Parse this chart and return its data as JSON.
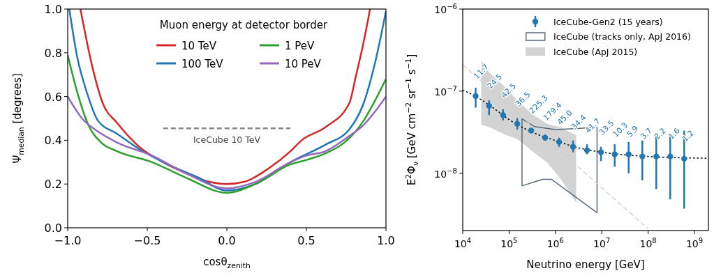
{
  "chart_data": [
    {
      "type": "line",
      "xlabel": "cosθ$_{zenith}$",
      "ylabel": "Ψ$_{median}$ [degrees]",
      "legend_title": "Muon energy at detector border",
      "legend": "top",
      "grid": false,
      "xlim": [
        -1,
        1
      ],
      "xticks": [
        {
          "value": -1,
          "label": "−1.0"
        },
        {
          "value": -0.5,
          "label": "−0.5"
        },
        {
          "value": 0,
          "label": "0.0"
        },
        {
          "value": 0.5,
          "label": "0.5"
        },
        {
          "value": 1,
          "label": "1.0"
        }
      ],
      "ylim": [
        0,
        1
      ],
      "yticks": [
        {
          "value": 0,
          "label": "0.0"
        },
        {
          "value": 0.2,
          "label": "0.2"
        },
        {
          "value": 0.4,
          "label": "0.4"
        },
        {
          "value": 0.6,
          "label": "0.6"
        },
        {
          "value": 0.8,
          "label": "0.8"
        },
        {
          "value": 1,
          "label": "1.0"
        }
      ],
      "series": [
        {
          "name": "10 TeV",
          "color": "#d62728",
          "x": [
            -0.92,
            -0.84,
            -0.78,
            -0.69,
            -0.55,
            -0.4,
            -0.26,
            -0.11,
            0,
            0.11,
            0.26,
            0.4,
            0.47,
            0.62,
            0.77,
            0.81,
            0.86,
            0.9
          ],
          "values": [
            1.0,
            0.72,
            0.57,
            0.48,
            0.37,
            0.3,
            0.25,
            0.21,
            0.2,
            0.21,
            0.27,
            0.35,
            0.4,
            0.46,
            0.57,
            0.69,
            0.85,
            1.0
          ]
        },
        {
          "name": "100 TeV",
          "color": "#1f77b4",
          "x": [
            -0.99,
            -0.94,
            -0.88,
            -0.81,
            -0.69,
            -0.55,
            -0.4,
            -0.18,
            0,
            0.18,
            0.4,
            0.62,
            0.77,
            0.86,
            0.93,
            1.0
          ],
          "values": [
            1.0,
            0.78,
            0.62,
            0.49,
            0.43,
            0.36,
            0.3,
            0.23,
            0.17,
            0.2,
            0.3,
            0.38,
            0.45,
            0.57,
            0.75,
            0.99
          ]
        },
        {
          "name": "1 PeV",
          "color": "#2ca02c",
          "x": [
            -1,
            -0.94,
            -0.87,
            -0.79,
            -0.69,
            -0.47,
            -0.26,
            0,
            0.18,
            0.4,
            0.5,
            0.62,
            0.77,
            0.86,
            0.93,
            1.0
          ],
          "values": [
            0.79,
            0.62,
            0.47,
            0.39,
            0.35,
            0.3,
            0.23,
            0.16,
            0.2,
            0.29,
            0.31,
            0.34,
            0.41,
            0.49,
            0.58,
            0.68
          ]
        },
        {
          "name": "10 PeV",
          "color": "#9467bd",
          "x": [
            -1,
            -0.91,
            -0.81,
            -0.69,
            -0.47,
            -0.26,
            0,
            0.18,
            0.4,
            0.5,
            0.62,
            0.77,
            0.86,
            0.93,
            1.0
          ],
          "values": [
            0.6,
            0.5,
            0.44,
            0.39,
            0.33,
            0.25,
            0.18,
            0.21,
            0.3,
            0.33,
            0.35,
            0.42,
            0.47,
            0.53,
            0.6
          ]
        },
        {
          "color": "#888888",
          "line_style": "dashed",
          "x": [
            -0.4,
            0.4
          ],
          "values": [
            0.455,
            0.455
          ]
        }
      ],
      "annotations": [
        {
          "text": "IceCube 10 TeV",
          "x": 0,
          "y": 0.455
        }
      ]
    },
    {
      "type": "scatter",
      "xlabel": "Neutrino energy [GeV]",
      "ylabel": "E$^{2}$Φ$_{ν}$ [GeV cm$^{−2}$ sr$^{−1}$ s$^{−1}$]",
      "log": "xy",
      "legend": "top right",
      "grid": false,
      "xlim": [
        10000,
        2000000000
      ],
      "xticks": [
        {
          "value": 10000,
          "label": "10$^{4}$"
        },
        {
          "value": 100000,
          "label": "10$^{5}$"
        },
        {
          "value": 1000000,
          "label": "10$^{6}$"
        },
        {
          "value": 10000000,
          "label": "10$^{7}$"
        },
        {
          "value": 100000000,
          "label": "10$^{8}$"
        },
        {
          "value": 1000000000,
          "label": "10$^{9}$"
        }
      ],
      "ylim": [
        2e-09,
        1e-06
      ],
      "yticks": [
        {
          "value": 1e-08,
          "label": "10$^{−8}$"
        },
        {
          "value": 1e-07,
          "label": "10$^{−7}$"
        },
        {
          "value": 1e-06,
          "label": "10$^{−6}$"
        }
      ],
      "series": [
        {
          "type": "line",
          "name": "IceCube (ApJ 2015)",
          "color": "#d3d3d3",
          "x": [
            25000,
            37000,
            78000,
            150000,
            320000,
            660000,
            1300000,
            2800000
          ],
          "values": [
            null,
            null,
            null,
            null,
            null,
            null,
            null,
            null
          ],
          "upper": [
            2.35e-07,
            1.7e-07,
            1.15e-07,
            7.7e-08,
            5.2e-08,
            4e-08,
            3.6e-08,
            2.9e-08
          ],
          "lower": [
            3.9e-08,
            3.65e-08,
            3e-08,
            2.6e-08,
            1.85e-08,
            1.35e-08,
            8.5e-09,
            4.4e-09
          ]
        },
        {
          "type": "line",
          "name": "IceCube (tracks only, ApJ 2016)",
          "color": "#5a6a7a",
          "x": [
            190000,
            190000,
            350000,
            1000000,
            3000000,
            7900000
          ],
          "values": [
            7e-09,
            4.6e-08,
            3.7e-08,
            3.4e-08,
            3.5e-08,
            3.65e-08
          ]
        },
        {
          "type": "line",
          "color": "#5a6a7a",
          "x": [
            190000,
            525000,
            830000,
            7900000,
            7900000
          ],
          "values": [
            7e-09,
            8.4e-09,
            8.4e-09,
            3.3e-09,
            3.65e-08
          ]
        },
        {
          "type": "line",
          "color": "#cccccc",
          "line_style": "dashed",
          "x": [
            10000,
            100000000
          ],
          "values": [
            2.1e-07,
            2.1e-09
          ]
        },
        {
          "type": "line",
          "color": "#000000",
          "line_style": "dotted",
          "x": [
            10000,
            20000,
            50000,
            100000,
            300000,
            1000000,
            3000000,
            10000000,
            100000000,
            1000000000,
            2000000000
          ],
          "values": [
            1.03e-07,
            8.5e-08,
            6e-08,
            4.5e-08,
            3.2e-08,
            2.5e-08,
            2.05e-08,
            1.8e-08,
            1.6e-08,
            1.53e-08,
            1.52e-08
          ]
        },
        {
          "name": "IceCube-Gen2 (15 years)",
          "color": "#1f77b4",
          "marker": "circle",
          "x": [
            19000,
            37000,
            74000,
            150000,
            300000,
            600000,
            1200000,
            2400000,
            4800000,
            9600000,
            19000000,
            38000000,
            75000000,
            150000000,
            300000000,
            600000000
          ],
          "values": [
            8.7e-08,
            6.6e-08,
            5.1e-08,
            4e-08,
            3.3e-08,
            2.7e-08,
            2.4e-08,
            2.1e-08,
            1.9e-08,
            1.8e-08,
            1.7e-08,
            1.7e-08,
            1.6e-08,
            1.6e-08,
            1.6e-08,
            1.5e-08
          ],
          "errors": [
            [
              6.3e-08,
              1.1e-07
            ],
            [
              5.1e-08,
              7.7e-08
            ],
            [
              4.4e-08,
              6e-08
            ],
            [
              3.4e-08,
              4.7e-08
            ],
            null,
            [
              2.5e-08,
              2.95e-08
            ],
            [
              2.1e-08,
              2.7e-08
            ],
            [
              1.8e-08,
              2.5e-08
            ],
            [
              1.7e-08,
              2.25e-08
            ],
            [
              1.4e-08,
              2.1e-08
            ],
            [
              1.2e-08,
              2.25e-08
            ],
            [
              1e-08,
              2.4e-08
            ],
            [
              8.2e-09,
              2.5e-08
            ],
            [
              6.4e-09,
              2.8e-08
            ],
            [
              4.8e-09,
              3e-08
            ],
            [
              3.7e-09,
              3.3e-08
            ]
          ]
        }
      ],
      "annotations": [
        {
          "text": "11.7",
          "x": 19000,
          "y": 8.7e-08
        },
        {
          "text": "24.5",
          "x": 37000,
          "y": 6.6e-08
        },
        {
          "text": "42.5",
          "x": 74000,
          "y": 5.1e-08
        },
        {
          "text": "36.5",
          "x": 150000,
          "y": 4e-08
        },
        {
          "text": "225.3",
          "x": 300000,
          "y": 3.3e-08
        },
        {
          "text": "179.4",
          "x": 600000,
          "y": 2.7e-08
        },
        {
          "text": "45.0",
          "x": 1200000,
          "y": 2.4e-08
        },
        {
          "text": "34.4",
          "x": 2400000,
          "y": 2.1e-08
        },
        {
          "text": "41.7",
          "x": 4800000,
          "y": 1.9e-08
        },
        {
          "text": "33.5",
          "x": 9600000,
          "y": 1.8e-08
        },
        {
          "text": "10.3",
          "x": 19000000,
          "y": 1.7e-08
        },
        {
          "text": "5.9",
          "x": 38000000,
          "y": 1.7e-08
        },
        {
          "text": "3.7",
          "x": 75000000,
          "y": 1.6e-08
        },
        {
          "text": "2.2",
          "x": 150000000,
          "y": 1.6e-08
        },
        {
          "text": "1.6",
          "x": 300000000,
          "y": 1.6e-08
        },
        {
          "text": "1.2",
          "x": 600000000,
          "y": 1.5e-08
        }
      ]
    }
  ]
}
